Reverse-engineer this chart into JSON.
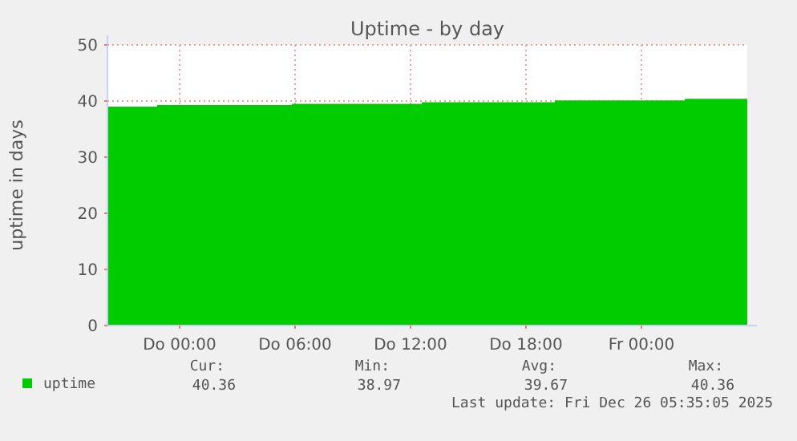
{
  "chart_data": {
    "type": "area",
    "title": "Uptime - by day",
    "ylabel": "uptime in days",
    "x": [
      "2025-12-24T20:15",
      "2025-12-24T22:50",
      "2025-12-24T22:50",
      "2025-12-25T05:50",
      "2025-12-25T05:50",
      "2025-12-25T12:35",
      "2025-12-25T12:35",
      "2025-12-25T19:30",
      "2025-12-25T19:30",
      "2025-12-26T02:15",
      "2025-12-26T02:15",
      "2025-12-26T05:30"
    ],
    "series": [
      {
        "name": "uptime",
        "color": "#00cc00",
        "values": [
          39.0,
          39.0,
          39.3,
          39.3,
          39.5,
          39.5,
          39.8,
          39.8,
          40.1,
          40.1,
          40.4,
          40.4
        ]
      }
    ],
    "xlim": [
      "2025-12-24T20:15",
      "2025-12-26T05:30"
    ],
    "xticks": [
      {
        "value": "2025-12-25T00:00",
        "label": "Do 00:00"
      },
      {
        "value": "2025-12-25T06:00",
        "label": "Do 06:00"
      },
      {
        "value": "2025-12-25T12:00",
        "label": "Do 12:00"
      },
      {
        "value": "2025-12-25T18:00",
        "label": "Do 18:00"
      },
      {
        "value": "2025-12-26T00:00",
        "label": "Fr 00:00"
      }
    ],
    "ylim": [
      0,
      50
    ],
    "yticks": [
      0,
      10,
      20,
      30,
      40,
      50
    ],
    "grid": true,
    "legend": "bottom left",
    "annotations": [
      "Cur:",
      "Min:",
      "Avg:",
      "Max:",
      "40.36",
      "38.97",
      "39.67",
      "40.36",
      "Last update: Fri Dec 26 05:35:05 2025"
    ]
  }
}
